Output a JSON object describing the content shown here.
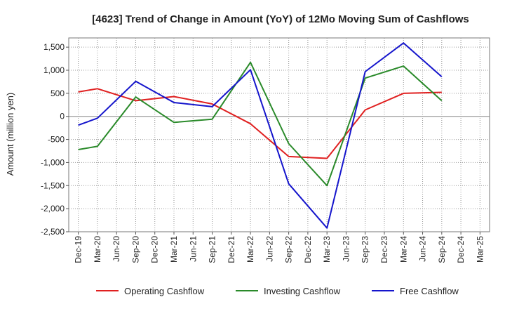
{
  "chart_data": {
    "type": "line",
    "title": "[4623]  Trend of Change in Amount (YoY) of 12Mo Moving Sum of Cashflows",
    "xlabel": "",
    "ylabel": "Amount (million yen)",
    "ylim": [
      -2500,
      1700
    ],
    "yticks": [
      1500,
      1000,
      500,
      0,
      -500,
      -1000,
      -1500,
      -2000,
      -2500
    ],
    "ytick_labels": [
      "1,500",
      "1,000",
      "500",
      "0",
      "-500",
      "-1,000",
      "-1,500",
      "-2,000",
      "-2,500"
    ],
    "categories": [
      "Dec-19",
      "Mar-20",
      "Jun-20",
      "Sep-20",
      "Dec-20",
      "Mar-21",
      "Jun-21",
      "Sep-21",
      "Dec-21",
      "Mar-22",
      "Jun-22",
      "Sep-22",
      "Dec-22",
      "Mar-23",
      "Jun-23",
      "Sep-23",
      "Dec-23",
      "Mar-24",
      "Jun-24",
      "Sep-24",
      "Dec-24",
      "Mar-25"
    ],
    "series": [
      {
        "name": "Operating Cashflow",
        "color": "#e02020",
        "values": [
          530,
          600,
          null,
          340,
          null,
          430,
          null,
          270,
          null,
          -160,
          null,
          -870,
          null,
          -910,
          null,
          140,
          null,
          500,
          null,
          520,
          null,
          null
        ]
      },
      {
        "name": "Investing Cashflow",
        "color": "#2a8a2a",
        "values": [
          -720,
          -650,
          null,
          420,
          null,
          -130,
          null,
          -60,
          null,
          1170,
          null,
          -590,
          null,
          -1500,
          null,
          830,
          null,
          1090,
          null,
          340,
          null,
          null
        ]
      },
      {
        "name": "Free Cashflow",
        "color": "#1515cc",
        "values": [
          -190,
          -40,
          null,
          760,
          null,
          300,
          null,
          210,
          null,
          1010,
          null,
          -1460,
          null,
          -2420,
          null,
          970,
          null,
          1590,
          null,
          860,
          null,
          null
        ]
      }
    ],
    "legend_position": "bottom",
    "grid": true
  }
}
